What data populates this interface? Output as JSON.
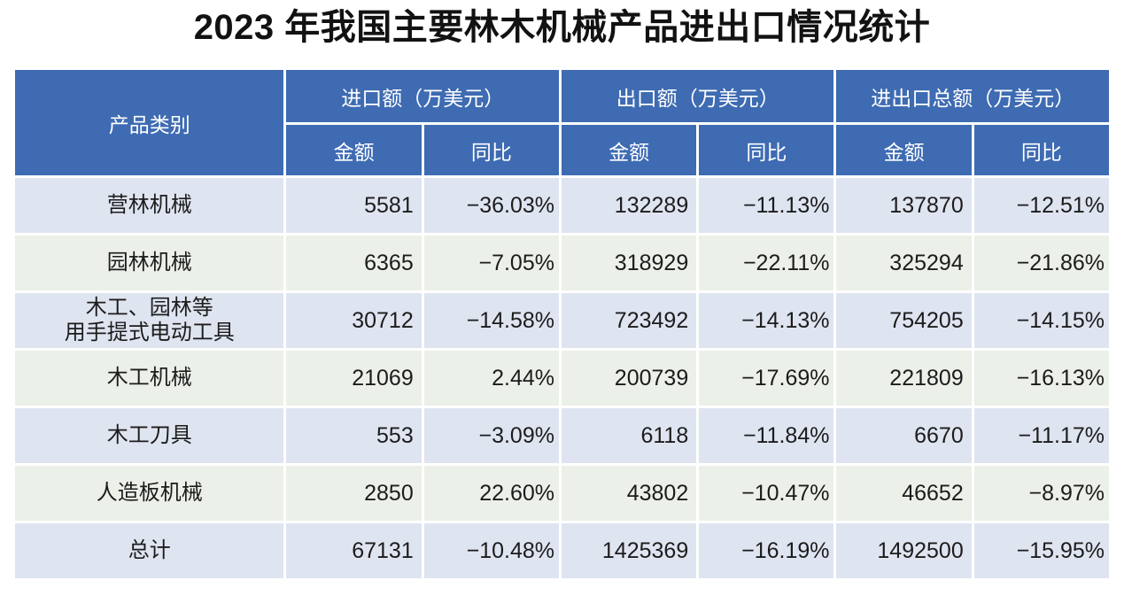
{
  "title": "2023 年我国主要林木机械产品进出口情况统计",
  "colors": {
    "header_blue": "#3E6BB2",
    "row_lavender": "#DFE4F1",
    "row_green": "#EBF0E8",
    "text_dark": "#1C1C1C",
    "grid_white": "#FFFFFF"
  },
  "table": {
    "product_header": "产品类别",
    "group_import": "进口额（万美元）",
    "group_export": "出口额（万美元）",
    "group_total": "进出口总额（万美元）",
    "sub_amount": "金额",
    "sub_yoy": "同比",
    "rows": [
      {
        "product": "营林机械",
        "import_amount": "5581",
        "import_yoy": "−36.03%",
        "export_amount": "132289",
        "export_yoy": "−11.13%",
        "total_amount": "137870",
        "total_yoy": "−12.51%"
      },
      {
        "product": "园林机械",
        "import_amount": "6365",
        "import_yoy": "−7.05%",
        "export_amount": "318929",
        "export_yoy": "−22.11%",
        "total_amount": "325294",
        "total_yoy": "−21.86%"
      },
      {
        "product": "木工、园林等\n用手提式电动工具",
        "import_amount": "30712",
        "import_yoy": "−14.58%",
        "export_amount": "723492",
        "export_yoy": "−14.13%",
        "total_amount": "754205",
        "total_yoy": "−14.15%"
      },
      {
        "product": "木工机械",
        "import_amount": "21069",
        "import_yoy": "2.44%",
        "export_amount": "200739",
        "export_yoy": "−17.69%",
        "total_amount": "221809",
        "total_yoy": "−16.13%"
      },
      {
        "product": "木工刀具",
        "import_amount": "553",
        "import_yoy": "−3.09%",
        "export_amount": "6118",
        "export_yoy": "−11.84%",
        "total_amount": "6670",
        "total_yoy": "−11.17%"
      },
      {
        "product": "人造板机械",
        "import_amount": "2850",
        "import_yoy": "22.60%",
        "export_amount": "43802",
        "export_yoy": "−10.47%",
        "total_amount": "46652",
        "total_yoy": "−8.97%"
      },
      {
        "product": "总计",
        "import_amount": "67131",
        "import_yoy": "−10.48%",
        "export_amount": "1425369",
        "export_yoy": "−16.19%",
        "total_amount": "1492500",
        "total_yoy": "−15.95%"
      }
    ]
  },
  "chart_data": {
    "type": "table",
    "title": "2023 年我国主要林木机械产品进出口情况统计",
    "unit": "万美元",
    "columns": [
      "产品类别",
      "进口额-金额",
      "进口额-同比",
      "出口额-金额",
      "出口额-同比",
      "进出口总额-金额",
      "进出口总额-同比"
    ],
    "rows": [
      [
        "营林机械",
        5581,
        "-36.03%",
        132289,
        "-11.13%",
        137870,
        "-12.51%"
      ],
      [
        "园林机械",
        6365,
        "-7.05%",
        318929,
        "-22.11%",
        325294,
        "-21.86%"
      ],
      [
        "木工、园林等用手提式电动工具",
        30712,
        "-14.58%",
        723492,
        "-14.13%",
        754205,
        "-14.15%"
      ],
      [
        "木工机械",
        21069,
        "2.44%",
        200739,
        "-17.69%",
        221809,
        "-16.13%"
      ],
      [
        "木工刀具",
        553,
        "-3.09%",
        6118,
        "-11.84%",
        6670,
        "-11.17%"
      ],
      [
        "人造板机械",
        2850,
        "22.60%",
        43802,
        "-10.47%",
        46652,
        "-8.97%"
      ],
      [
        "总计",
        67131,
        "-10.48%",
        1425369,
        "-16.19%",
        1492500,
        "-15.95%"
      ]
    ]
  }
}
